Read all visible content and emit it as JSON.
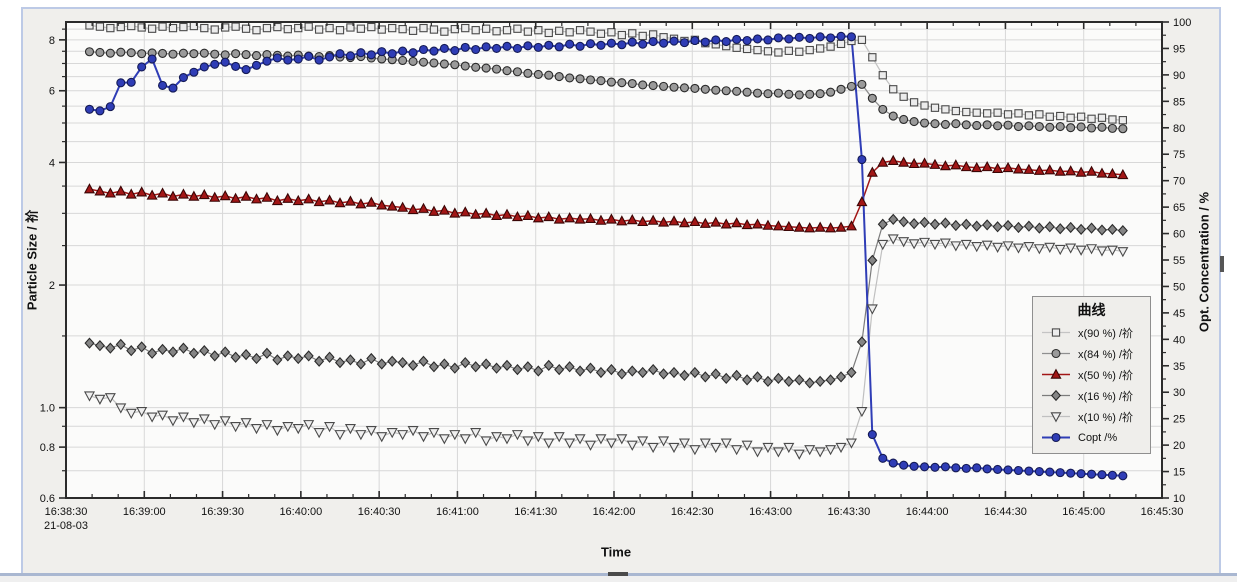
{
  "chart_data": {
    "type": "line",
    "x_axis_label": "Time",
    "x_date_label": "21-08-03",
    "x_unit": "clock time (HH:MM:SS), ticks every 30 s",
    "x_ticks": [
      {
        "t": 0,
        "label": "16:38:30"
      },
      {
        "t": 30,
        "label": "16:39:00"
      },
      {
        "t": 60,
        "label": "16:39:30"
      },
      {
        "t": 90,
        "label": "16:40:00"
      },
      {
        "t": 120,
        "label": "16:40:30"
      },
      {
        "t": 150,
        "label": "16:41:00"
      },
      {
        "t": 180,
        "label": "16:41:30"
      },
      {
        "t": 210,
        "label": "16:42:00"
      },
      {
        "t": 240,
        "label": "16:42:30"
      },
      {
        "t": 270,
        "label": "16:43:00"
      },
      {
        "t": 300,
        "label": "16:43:30"
      },
      {
        "t": 330,
        "label": "16:44:00"
      },
      {
        "t": 360,
        "label": "16:44:30"
      },
      {
        "t": 390,
        "label": "16:45:00"
      },
      {
        "t": 420,
        "label": "16:45:30"
      }
    ],
    "left_axis": {
      "label": "Particle Size / 祄",
      "scale": "log",
      "min": 0.6,
      "max": 8.85,
      "ticks": [
        {
          "v": 8,
          "label": "8"
        },
        {
          "v": 6,
          "label": "6"
        },
        {
          "v": 4,
          "label": "4"
        },
        {
          "v": 2,
          "label": "2"
        },
        {
          "v": 1,
          "label": "1.0"
        },
        {
          "v": 0.8,
          "label": "0.8"
        },
        {
          "v": 0.6,
          "label": "0.6"
        }
      ]
    },
    "right_axis": {
      "label": "Opt. Concentration / %",
      "scale": "linear",
      "min": 10,
      "max": 100,
      "major_step": 5,
      "minor_step": 2.5
    },
    "legend": {
      "title": "曲线",
      "position": "right-middle"
    },
    "t": [
      9,
      13,
      17,
      21,
      25,
      29,
      33,
      37,
      41,
      45,
      49,
      53,
      57,
      61,
      65,
      69,
      73,
      77,
      81,
      85,
      89,
      93,
      97,
      101,
      105,
      109,
      113,
      117,
      121,
      125,
      129,
      133,
      137,
      141,
      145,
      149,
      153,
      157,
      161,
      165,
      169,
      173,
      177,
      181,
      185,
      189,
      193,
      197,
      201,
      205,
      209,
      213,
      217,
      221,
      225,
      229,
      233,
      237,
      241,
      245,
      249,
      253,
      257,
      261,
      265,
      269,
      273,
      277,
      281,
      285,
      289,
      293,
      297,
      301,
      305,
      309,
      313,
      317,
      321,
      325,
      329,
      333,
      337,
      341,
      345,
      349,
      353,
      357,
      361,
      365,
      369,
      373,
      377,
      381,
      385,
      389,
      393,
      397,
      401,
      405
    ],
    "series": [
      {
        "name": "x(90 %) /祄",
        "axis": "left",
        "marker": "square",
        "fill": "#ececec",
        "edge": "#4a4a4a",
        "line": "#c4c4c4",
        "line_width": 1.3,
        "values": [
          8.68,
          8.62,
          8.55,
          8.6,
          8.65,
          8.58,
          8.52,
          8.62,
          8.55,
          8.6,
          8.65,
          8.55,
          8.48,
          8.58,
          8.62,
          8.52,
          8.45,
          8.55,
          8.6,
          8.5,
          8.55,
          8.62,
          8.48,
          8.55,
          8.45,
          8.58,
          8.52,
          8.6,
          8.48,
          8.55,
          8.5,
          8.42,
          8.55,
          8.48,
          8.38,
          8.5,
          8.55,
          8.45,
          8.52,
          8.4,
          8.45,
          8.52,
          8.38,
          8.45,
          8.32,
          8.42,
          8.35,
          8.45,
          8.38,
          8.28,
          8.35,
          8.22,
          8.3,
          8.18,
          8.25,
          8.12,
          8.05,
          7.95,
          8.0,
          7.85,
          7.8,
          7.72,
          7.65,
          7.6,
          7.55,
          7.5,
          7.45,
          7.52,
          7.48,
          7.55,
          7.62,
          7.7,
          7.82,
          7.95,
          8.0,
          7.25,
          6.55,
          6.05,
          5.8,
          5.62,
          5.52,
          5.45,
          5.4,
          5.35,
          5.32,
          5.3,
          5.28,
          5.3,
          5.25,
          5.28,
          5.22,
          5.25,
          5.18,
          5.2,
          5.15,
          5.18,
          5.12,
          5.15,
          5.1,
          5.08
        ]
      },
      {
        "name": "x(84 %) /祄",
        "axis": "left",
        "marker": "circle",
        "fill": "#9a9a9a",
        "edge": "#2a2a2a",
        "line": "#8f8f8f",
        "line_width": 1.3,
        "values": [
          7.48,
          7.45,
          7.42,
          7.46,
          7.44,
          7.4,
          7.43,
          7.41,
          7.38,
          7.42,
          7.4,
          7.42,
          7.38,
          7.35,
          7.4,
          7.36,
          7.32,
          7.36,
          7.33,
          7.3,
          7.34,
          7.3,
          7.28,
          7.32,
          7.26,
          7.24,
          7.28,
          7.22,
          7.18,
          7.15,
          7.12,
          7.08,
          7.05,
          7.02,
          6.98,
          6.95,
          6.9,
          6.85,
          6.82,
          6.78,
          6.72,
          6.68,
          6.62,
          6.58,
          6.55,
          6.5,
          6.45,
          6.42,
          6.38,
          6.35,
          6.3,
          6.28,
          6.25,
          6.2,
          6.18,
          6.15,
          6.12,
          6.1,
          6.08,
          6.05,
          6.02,
          6.0,
          5.98,
          5.95,
          5.92,
          5.9,
          5.92,
          5.88,
          5.86,
          5.88,
          5.9,
          5.95,
          6.05,
          6.15,
          6.22,
          5.75,
          5.4,
          5.2,
          5.1,
          5.04,
          5.0,
          4.98,
          4.96,
          4.98,
          4.95,
          4.93,
          4.95,
          4.92,
          4.94,
          4.9,
          4.92,
          4.9,
          4.88,
          4.9,
          4.87,
          4.89,
          4.86,
          4.88,
          4.85,
          4.84
        ]
      },
      {
        "name": "x(50 %) /祄",
        "axis": "left",
        "marker": "triangle-up",
        "fill": "#a21616",
        "edge": "#3a0505",
        "line": "#a21616",
        "line_width": 1.5,
        "values": [
          3.44,
          3.4,
          3.36,
          3.4,
          3.34,
          3.38,
          3.32,
          3.36,
          3.3,
          3.34,
          3.3,
          3.33,
          3.28,
          3.31,
          3.26,
          3.3,
          3.25,
          3.28,
          3.22,
          3.26,
          3.22,
          3.25,
          3.2,
          3.23,
          3.18,
          3.21,
          3.16,
          3.19,
          3.14,
          3.12,
          3.1,
          3.06,
          3.08,
          3.03,
          3.05,
          3.0,
          3.02,
          2.98,
          3.0,
          2.96,
          2.98,
          2.94,
          2.96,
          2.92,
          2.94,
          2.9,
          2.92,
          2.9,
          2.91,
          2.88,
          2.9,
          2.87,
          2.89,
          2.86,
          2.88,
          2.85,
          2.87,
          2.84,
          2.86,
          2.83,
          2.85,
          2.82,
          2.84,
          2.81,
          2.82,
          2.8,
          2.79,
          2.78,
          2.77,
          2.76,
          2.77,
          2.76,
          2.77,
          2.79,
          3.2,
          3.78,
          4.0,
          4.04,
          4.0,
          3.97,
          3.98,
          3.95,
          3.92,
          3.94,
          3.9,
          3.88,
          3.9,
          3.86,
          3.88,
          3.85,
          3.84,
          3.82,
          3.83,
          3.8,
          3.81,
          3.78,
          3.8,
          3.76,
          3.75,
          3.73
        ]
      },
      {
        "name": "x(16 %) /祄",
        "axis": "left",
        "marker": "diamond",
        "fill": "#858585",
        "edge": "#2a2a2a",
        "line": "#7c7c7c",
        "line_width": 1.2,
        "values": [
          1.44,
          1.42,
          1.4,
          1.43,
          1.38,
          1.41,
          1.36,
          1.39,
          1.37,
          1.4,
          1.36,
          1.38,
          1.34,
          1.37,
          1.33,
          1.35,
          1.32,
          1.36,
          1.31,
          1.34,
          1.32,
          1.34,
          1.3,
          1.33,
          1.29,
          1.31,
          1.28,
          1.32,
          1.28,
          1.3,
          1.29,
          1.27,
          1.3,
          1.26,
          1.28,
          1.25,
          1.29,
          1.26,
          1.28,
          1.25,
          1.27,
          1.24,
          1.26,
          1.23,
          1.27,
          1.24,
          1.26,
          1.23,
          1.25,
          1.22,
          1.24,
          1.21,
          1.23,
          1.22,
          1.24,
          1.21,
          1.22,
          1.2,
          1.22,
          1.19,
          1.21,
          1.18,
          1.2,
          1.17,
          1.19,
          1.16,
          1.18,
          1.16,
          1.17,
          1.15,
          1.16,
          1.17,
          1.19,
          1.22,
          1.45,
          2.3,
          2.82,
          2.9,
          2.86,
          2.83,
          2.85,
          2.82,
          2.84,
          2.8,
          2.82,
          2.79,
          2.81,
          2.78,
          2.8,
          2.77,
          2.79,
          2.76,
          2.78,
          2.75,
          2.77,
          2.74,
          2.76,
          2.73,
          2.74,
          2.72
        ]
      },
      {
        "name": "x(10 %) /祄",
        "axis": "left",
        "marker": "triangle-down",
        "fill": "#efefef",
        "edge": "#4a4a4a",
        "line": "#c0c0c0",
        "line_width": 1.2,
        "values": [
          1.07,
          1.05,
          1.06,
          1.0,
          0.97,
          0.98,
          0.95,
          0.96,
          0.93,
          0.95,
          0.92,
          0.94,
          0.91,
          0.93,
          0.9,
          0.92,
          0.89,
          0.91,
          0.88,
          0.9,
          0.89,
          0.91,
          0.87,
          0.9,
          0.86,
          0.89,
          0.86,
          0.88,
          0.85,
          0.87,
          0.86,
          0.88,
          0.85,
          0.87,
          0.84,
          0.86,
          0.84,
          0.87,
          0.83,
          0.85,
          0.84,
          0.86,
          0.83,
          0.85,
          0.82,
          0.85,
          0.82,
          0.84,
          0.81,
          0.84,
          0.82,
          0.84,
          0.81,
          0.83,
          0.8,
          0.83,
          0.8,
          0.82,
          0.79,
          0.82,
          0.8,
          0.82,
          0.79,
          0.81,
          0.78,
          0.8,
          0.78,
          0.8,
          0.77,
          0.79,
          0.78,
          0.79,
          0.8,
          0.82,
          0.98,
          1.75,
          2.52,
          2.6,
          2.56,
          2.53,
          2.55,
          2.52,
          2.54,
          2.5,
          2.52,
          2.49,
          2.51,
          2.48,
          2.5,
          2.47,
          2.49,
          2.46,
          2.48,
          2.45,
          2.47,
          2.44,
          2.46,
          2.43,
          2.44,
          2.42
        ]
      },
      {
        "name": "Copt /%",
        "axis": "right",
        "marker": "circle",
        "fill": "#2f3db6",
        "edge": "#141a55",
        "line": "#2f3db6",
        "line_width": 2,
        "values": [
          83.5,
          83.2,
          84.0,
          88.5,
          88.6,
          91.5,
          93.0,
          88.0,
          87.5,
          89.5,
          90.5,
          91.5,
          92.0,
          92.4,
          91.6,
          91.0,
          91.8,
          92.6,
          93.2,
          92.8,
          93.0,
          93.5,
          92.8,
          93.4,
          94.0,
          93.6,
          94.2,
          93.8,
          94.4,
          94.0,
          94.5,
          94.2,
          94.8,
          94.5,
          95.0,
          94.6,
          95.2,
          94.8,
          95.3,
          95.0,
          95.4,
          95.0,
          95.5,
          95.2,
          95.6,
          95.3,
          95.8,
          95.4,
          95.9,
          95.6,
          96.0,
          95.7,
          96.2,
          95.8,
          96.3,
          96.0,
          96.4,
          96.1,
          96.5,
          96.2,
          96.6,
          96.3,
          96.7,
          96.5,
          96.8,
          96.6,
          97.0,
          96.8,
          97.1,
          96.9,
          97.2,
          97.0,
          97.3,
          97.2,
          74.0,
          22.0,
          17.5,
          16.6,
          16.2,
          16.0,
          15.9,
          15.8,
          15.9,
          15.7,
          15.6,
          15.7,
          15.5,
          15.4,
          15.3,
          15.2,
          15.1,
          15.0,
          14.9,
          14.8,
          14.7,
          14.6,
          14.5,
          14.4,
          14.3,
          14.2
        ]
      }
    ]
  }
}
